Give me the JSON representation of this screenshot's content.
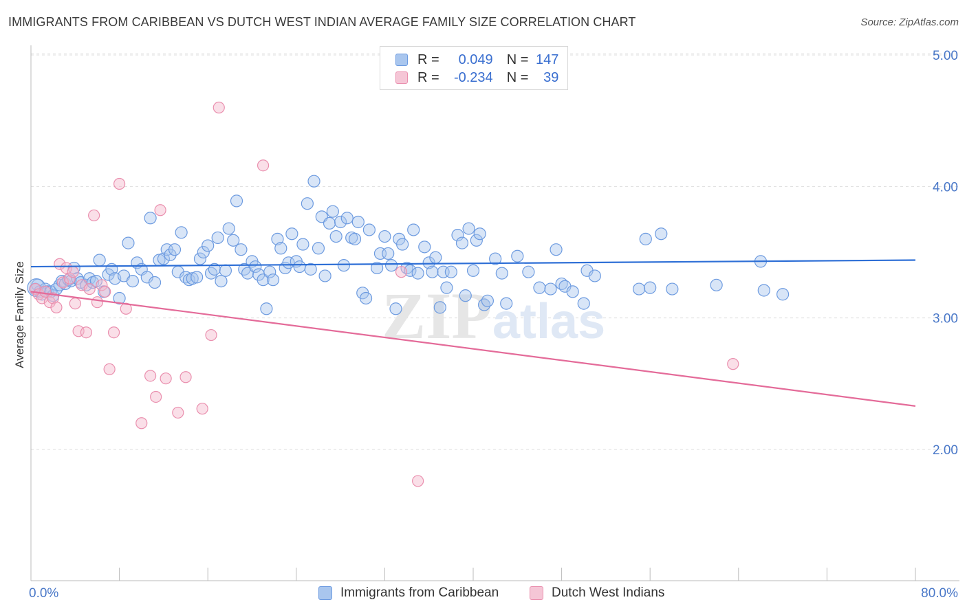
{
  "title": "IMMIGRANTS FROM CARIBBEAN VS DUTCH WEST INDIAN AVERAGE FAMILY SIZE CORRELATION CHART",
  "source": "Source: ZipAtlas.com",
  "watermark": {
    "zip": "ZIP",
    "atlas": "atlas"
  },
  "legend": {
    "r_label": "R =",
    "n_label": "N =",
    "series1": {
      "r": "0.049",
      "n": "147"
    },
    "series2": {
      "r": "-0.234",
      "n": "39"
    }
  },
  "colors": {
    "blue_fill": "#a9c6ee",
    "blue_stroke": "#6d9be0",
    "blue_line": "#2e6fd6",
    "pink_fill": "#f5b8cc",
    "pink_stroke": "#ea8fae",
    "pink_line": "#e46b99",
    "axis_text": "#4a78c8"
  },
  "chart_data": {
    "type": "scatter",
    "xlabel": "",
    "ylabel": "Average Family Size",
    "xlim": [
      0,
      80
    ],
    "ylim": [
      1.0,
      5.2
    ],
    "x_ticks": [
      "0.0%",
      "80.0%"
    ],
    "y_ticks": [
      {
        "v": 2.0,
        "label": "2.00"
      },
      {
        "v": 3.0,
        "label": "3.00"
      },
      {
        "v": 4.0,
        "label": "4.00"
      },
      {
        "v": 5.0,
        "label": "5.00"
      }
    ],
    "grid": true,
    "legend_position": "top-center",
    "series": [
      {
        "name": "Immigrants from Caribbean",
        "color": "#6d9be0",
        "trend": {
          "x": [
            0,
            80
          ],
          "y": [
            3.39,
            3.44
          ]
        },
        "points": [
          [
            0.4,
            3.22
          ],
          [
            0.6,
            3.25
          ],
          [
            0.8,
            3.2
          ],
          [
            1.0,
            3.18
          ],
          [
            1.3,
            3.22
          ],
          [
            1.5,
            3.2
          ],
          [
            1.8,
            3.2
          ],
          [
            2.0,
            3.17
          ],
          [
            2.3,
            3.22
          ],
          [
            2.6,
            3.25
          ],
          [
            2.8,
            3.28
          ],
          [
            3.1,
            3.26
          ],
          [
            3.4,
            3.29
          ],
          [
            3.6,
            3.28
          ],
          [
            3.9,
            3.38
          ],
          [
            4.2,
            3.3
          ],
          [
            4.5,
            3.27
          ],
          [
            5.0,
            3.25
          ],
          [
            5.3,
            3.3
          ],
          [
            5.6,
            3.27
          ],
          [
            5.9,
            3.28
          ],
          [
            6.2,
            3.44
          ],
          [
            6.6,
            3.2
          ],
          [
            7.0,
            3.33
          ],
          [
            7.3,
            3.37
          ],
          [
            7.6,
            3.3
          ],
          [
            8.0,
            3.15
          ],
          [
            8.4,
            3.32
          ],
          [
            8.8,
            3.57
          ],
          [
            9.2,
            3.28
          ],
          [
            9.6,
            3.42
          ],
          [
            10.0,
            3.37
          ],
          [
            10.5,
            3.31
          ],
          [
            10.8,
            3.76
          ],
          [
            11.2,
            3.27
          ],
          [
            11.6,
            3.44
          ],
          [
            12.0,
            3.45
          ],
          [
            12.3,
            3.52
          ],
          [
            12.6,
            3.48
          ],
          [
            13.0,
            3.52
          ],
          [
            13.3,
            3.35
          ],
          [
            13.6,
            3.65
          ],
          [
            14.0,
            3.31
          ],
          [
            14.3,
            3.29
          ],
          [
            14.6,
            3.3
          ],
          [
            15.0,
            3.31
          ],
          [
            15.3,
            3.45
          ],
          [
            15.6,
            3.5
          ],
          [
            16.0,
            3.55
          ],
          [
            16.3,
            3.34
          ],
          [
            16.6,
            3.37
          ],
          [
            16.9,
            3.61
          ],
          [
            17.2,
            3.28
          ],
          [
            17.6,
            3.36
          ],
          [
            17.9,
            3.68
          ],
          [
            18.3,
            3.59
          ],
          [
            18.6,
            3.89
          ],
          [
            19.0,
            3.52
          ],
          [
            19.3,
            3.37
          ],
          [
            19.6,
            3.34
          ],
          [
            20.0,
            3.43
          ],
          [
            20.3,
            3.39
          ],
          [
            20.6,
            3.33
          ],
          [
            21.0,
            3.29
          ],
          [
            21.3,
            3.07
          ],
          [
            21.6,
            3.35
          ],
          [
            21.9,
            3.29
          ],
          [
            22.3,
            3.6
          ],
          [
            22.6,
            3.53
          ],
          [
            23.0,
            3.38
          ],
          [
            23.3,
            3.42
          ],
          [
            23.6,
            3.64
          ],
          [
            24.0,
            3.43
          ],
          [
            24.3,
            3.39
          ],
          [
            24.6,
            3.56
          ],
          [
            25.0,
            3.87
          ],
          [
            25.3,
            3.37
          ],
          [
            25.6,
            4.04
          ],
          [
            26.0,
            3.53
          ],
          [
            26.3,
            3.77
          ],
          [
            26.6,
            3.32
          ],
          [
            27.0,
            3.72
          ],
          [
            27.3,
            3.81
          ],
          [
            27.6,
            3.62
          ],
          [
            28.0,
            3.73
          ],
          [
            28.3,
            3.4
          ],
          [
            28.6,
            3.76
          ],
          [
            29.0,
            3.61
          ],
          [
            29.3,
            3.6
          ],
          [
            29.6,
            3.73
          ],
          [
            30.0,
            3.19
          ],
          [
            30.3,
            3.15
          ],
          [
            30.6,
            3.67
          ],
          [
            31.3,
            3.38
          ],
          [
            31.6,
            3.49
          ],
          [
            32.0,
            3.62
          ],
          [
            32.3,
            3.49
          ],
          [
            32.6,
            3.4
          ],
          [
            33.0,
            3.07
          ],
          [
            33.3,
            3.6
          ],
          [
            33.6,
            3.56
          ],
          [
            34.0,
            3.38
          ],
          [
            34.3,
            3.36
          ],
          [
            34.6,
            3.67
          ],
          [
            35.0,
            3.34
          ],
          [
            35.6,
            3.54
          ],
          [
            36.0,
            3.42
          ],
          [
            36.3,
            3.35
          ],
          [
            36.6,
            3.46
          ],
          [
            37.0,
            3.08
          ],
          [
            37.3,
            3.35
          ],
          [
            37.6,
            3.23
          ],
          [
            38.0,
            3.35
          ],
          [
            38.6,
            3.63
          ],
          [
            39.0,
            3.57
          ],
          [
            39.3,
            3.17
          ],
          [
            39.6,
            3.68
          ],
          [
            40.0,
            3.36
          ],
          [
            40.3,
            3.59
          ],
          [
            40.6,
            3.64
          ],
          [
            41.0,
            3.1
          ],
          [
            41.3,
            3.13
          ],
          [
            42.0,
            3.45
          ],
          [
            42.6,
            3.34
          ],
          [
            43.0,
            3.11
          ],
          [
            44.0,
            3.47
          ],
          [
            45.0,
            3.35
          ],
          [
            46.0,
            3.23
          ],
          [
            47.0,
            3.22
          ],
          [
            47.5,
            3.52
          ],
          [
            48.0,
            3.26
          ],
          [
            48.3,
            3.24
          ],
          [
            49.0,
            3.2
          ],
          [
            50.0,
            3.11
          ],
          [
            50.3,
            3.36
          ],
          [
            51.0,
            3.32
          ],
          [
            55.0,
            3.22
          ],
          [
            55.6,
            3.6
          ],
          [
            56.0,
            3.23
          ],
          [
            57.0,
            3.64
          ],
          [
            58.0,
            3.22
          ],
          [
            62.0,
            3.25
          ],
          [
            66.0,
            3.43
          ],
          [
            66.3,
            3.21
          ],
          [
            68.0,
            3.18
          ]
        ]
      },
      {
        "name": "Dutch West Indians",
        "color": "#ea8fae",
        "trend": {
          "x": [
            0,
            80
          ],
          "y": [
            3.2,
            2.33
          ]
        },
        "points": [
          [
            0.4,
            3.22
          ],
          [
            0.7,
            3.18
          ],
          [
            1.0,
            3.15
          ],
          [
            1.3,
            3.2
          ],
          [
            1.7,
            3.12
          ],
          [
            2.0,
            3.15
          ],
          [
            2.3,
            3.08
          ],
          [
            2.6,
            3.41
          ],
          [
            2.9,
            3.27
          ],
          [
            3.2,
            3.38
          ],
          [
            3.5,
            3.3
          ],
          [
            3.8,
            3.35
          ],
          [
            4.0,
            3.11
          ],
          [
            4.3,
            2.9
          ],
          [
            4.6,
            3.25
          ],
          [
            5.0,
            2.89
          ],
          [
            5.3,
            3.22
          ],
          [
            5.7,
            3.78
          ],
          [
            6.0,
            3.12
          ],
          [
            6.4,
            3.25
          ],
          [
            6.7,
            3.2
          ],
          [
            7.1,
            2.61
          ],
          [
            7.5,
            2.89
          ],
          [
            8.0,
            4.02
          ],
          [
            8.6,
            3.07
          ],
          [
            10.0,
            2.2
          ],
          [
            10.8,
            2.56
          ],
          [
            11.3,
            2.4
          ],
          [
            11.7,
            3.82
          ],
          [
            12.2,
            2.54
          ],
          [
            13.3,
            2.28
          ],
          [
            14.0,
            2.55
          ],
          [
            15.5,
            2.31
          ],
          [
            16.3,
            2.87
          ],
          [
            17.0,
            4.6
          ],
          [
            21.0,
            4.16
          ],
          [
            33.5,
            3.35
          ],
          [
            35.0,
            1.76
          ],
          [
            63.5,
            2.65
          ]
        ]
      }
    ]
  }
}
